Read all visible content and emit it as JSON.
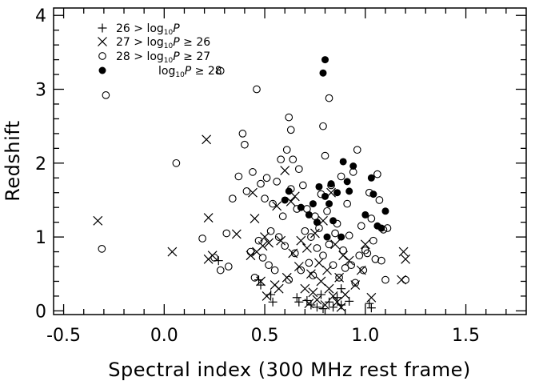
{
  "chart_data": {
    "type": "scatter",
    "title": "",
    "xlabel": "Spectral index (300 MHz rest frame)",
    "ylabel": "Redshift",
    "xlim": [
      -0.55,
      1.8
    ],
    "ylim": [
      -0.05,
      4.1
    ],
    "x_ticks": [
      "-0.5",
      "0.0",
      "0.5",
      "1.0",
      "1.5"
    ],
    "x_tick_values": [
      -0.5,
      0.0,
      0.5,
      1.0,
      1.5
    ],
    "y_ticks": [
      "0",
      "1",
      "2",
      "3",
      "4"
    ],
    "y_tick_values": [
      0,
      1,
      2,
      3,
      4
    ],
    "grid": false,
    "legend_position": "top-left",
    "series": [
      {
        "name": "26 > log10P",
        "legend_parts": {
          "symbol": "+",
          "lead": "26 > log",
          "sub": "10",
          "var": "P",
          "tail": ""
        },
        "marker": "plus",
        "x": [
          0.27,
          0.47,
          0.48,
          0.53,
          0.54,
          0.66,
          0.67,
          0.71,
          0.73,
          0.76,
          0.78,
          0.79,
          0.82,
          0.84,
          0.86,
          0.88,
          0.88,
          0.92,
          1.02,
          1.03
        ],
        "y": [
          0.68,
          0.42,
          0.35,
          0.22,
          0.12,
          0.18,
          0.12,
          0.14,
          0.08,
          0.05,
          0.22,
          0.03,
          0.12,
          0.05,
          0.18,
          0.3,
          0.08,
          0.13,
          0.1,
          0.04
        ]
      },
      {
        "name": "27 > log10P ≥ 26",
        "legend_parts": {
          "symbol": "×",
          "lead": "27 > log",
          "sub": "10",
          "var": "P",
          "tail": " ≥ 26"
        },
        "marker": "cross",
        "x": [
          -0.33,
          0.04,
          0.21,
          0.22,
          0.22,
          0.24,
          0.36,
          0.43,
          0.44,
          0.45,
          0.46,
          0.48,
          0.49,
          0.5,
          0.51,
          0.52,
          0.55,
          0.56,
          0.57,
          0.58,
          0.6,
          0.61,
          0.63,
          0.64,
          0.65,
          0.67,
          0.68,
          0.7,
          0.71,
          0.72,
          0.73,
          0.74,
          0.75,
          0.76,
          0.77,
          0.78,
          0.79,
          0.8,
          0.81,
          0.82,
          0.83,
          0.84,
          0.85,
          0.86,
          0.87,
          0.88,
          0.89,
          0.9,
          0.92,
          0.95,
          0.98,
          1.0,
          1.03,
          1.18,
          1.19,
          1.2
        ],
        "y": [
          1.22,
          0.8,
          2.32,
          1.26,
          0.7,
          0.75,
          1.04,
          0.75,
          1.6,
          1.25,
          0.8,
          0.4,
          0.88,
          1.0,
          0.2,
          0.92,
          0.35,
          1.42,
          0.3,
          0.95,
          1.9,
          0.45,
          1.48,
          0.78,
          1.55,
          0.6,
          0.95,
          0.3,
          0.85,
          0.1,
          0.5,
          0.25,
          1.05,
          0.15,
          0.65,
          0.4,
          1.22,
          0.08,
          0.55,
          0.3,
          1.6,
          0.2,
          0.9,
          0.12,
          0.45,
          0.05,
          0.75,
          0.22,
          0.68,
          0.35,
          0.55,
          0.9,
          0.18,
          0.42,
          0.8,
          0.7
        ]
      },
      {
        "name": "28 > log10P ≥ 27",
        "legend_parts": {
          "symbol": "○",
          "lead": "28 > log",
          "sub": "10",
          "var": "P",
          "tail": " ≥ 27"
        },
        "marker": "open-circle",
        "x": [
          -0.31,
          -0.29,
          0.06,
          0.19,
          0.25,
          0.28,
          0.31,
          0.32,
          0.34,
          0.37,
          0.39,
          0.4,
          0.41,
          0.43,
          0.44,
          0.45,
          0.47,
          0.48,
          0.49,
          0.5,
          0.51,
          0.52,
          0.53,
          0.54,
          0.55,
          0.56,
          0.57,
          0.58,
          0.59,
          0.6,
          0.61,
          0.62,
          0.63,
          0.64,
          0.65,
          0.66,
          0.67,
          0.68,
          0.69,
          0.7,
          0.71,
          0.72,
          0.73,
          0.74,
          0.75,
          0.76,
          0.77,
          0.78,
          0.79,
          0.8,
          0.81,
          0.82,
          0.83,
          0.84,
          0.85,
          0.86,
          0.87,
          0.88,
          0.89,
          0.9,
          0.91,
          0.92,
          0.93,
          0.94,
          0.95,
          0.96,
          0.97,
          0.98,
          0.99,
          1.0,
          1.01,
          1.02,
          1.03,
          1.04,
          1.05,
          1.06,
          1.07,
          1.08,
          1.09,
          1.1,
          1.11,
          1.2,
          0.28,
          0.46,
          0.62,
          0.63,
          0.79,
          0.82
        ],
        "y": [
          0.84,
          2.92,
          2.0,
          0.98,
          0.72,
          0.55,
          1.05,
          0.6,
          1.52,
          1.82,
          2.4,
          2.25,
          1.62,
          0.8,
          1.88,
          0.45,
          0.95,
          1.72,
          0.72,
          1.52,
          1.8,
          0.62,
          1.08,
          1.45,
          0.55,
          1.75,
          1.0,
          2.05,
          1.28,
          0.88,
          2.18,
          0.42,
          1.65,
          2.05,
          0.78,
          1.38,
          1.92,
          0.55,
          1.7,
          1.08,
          1.38,
          0.65,
          1.0,
          0.48,
          1.28,
          0.85,
          1.12,
          1.58,
          0.75,
          2.1,
          1.35,
          0.9,
          1.7,
          0.62,
          1.05,
          1.18,
          0.45,
          1.82,
          0.82,
          0.58,
          1.45,
          1.02,
          0.62,
          1.88,
          0.38,
          2.18,
          0.75,
          1.15,
          0.55,
          0.82,
          0.78,
          1.6,
          1.25,
          0.95,
          0.7,
          1.85,
          1.5,
          0.68,
          1.1,
          0.42,
          1.12,
          0.42,
          3.25,
          3.0,
          2.62,
          2.45,
          2.5,
          2.88
        ]
      },
      {
        "name": "log10P ≥ 28",
        "legend_parts": {
          "symbol": "●",
          "lead": "log",
          "sub": "10",
          "var": "P",
          "tail": " ≥ 28"
        },
        "marker": "filled-circle",
        "x": [
          0.6,
          0.62,
          0.68,
          0.72,
          0.74,
          0.76,
          0.77,
          0.79,
          0.8,
          0.8,
          0.81,
          0.82,
          0.83,
          0.84,
          0.86,
          0.88,
          0.89,
          0.91,
          0.92,
          0.94,
          1.0,
          1.03,
          1.04,
          1.06,
          1.08,
          1.1
        ],
        "y": [
          1.5,
          1.62,
          1.4,
          1.3,
          1.45,
          1.2,
          1.68,
          3.22,
          3.4,
          1.55,
          1.0,
          1.45,
          1.72,
          1.22,
          1.6,
          1.0,
          2.02,
          1.75,
          1.62,
          1.96,
          1.3,
          1.8,
          1.58,
          1.15,
          1.12,
          1.35
        ]
      }
    ]
  }
}
